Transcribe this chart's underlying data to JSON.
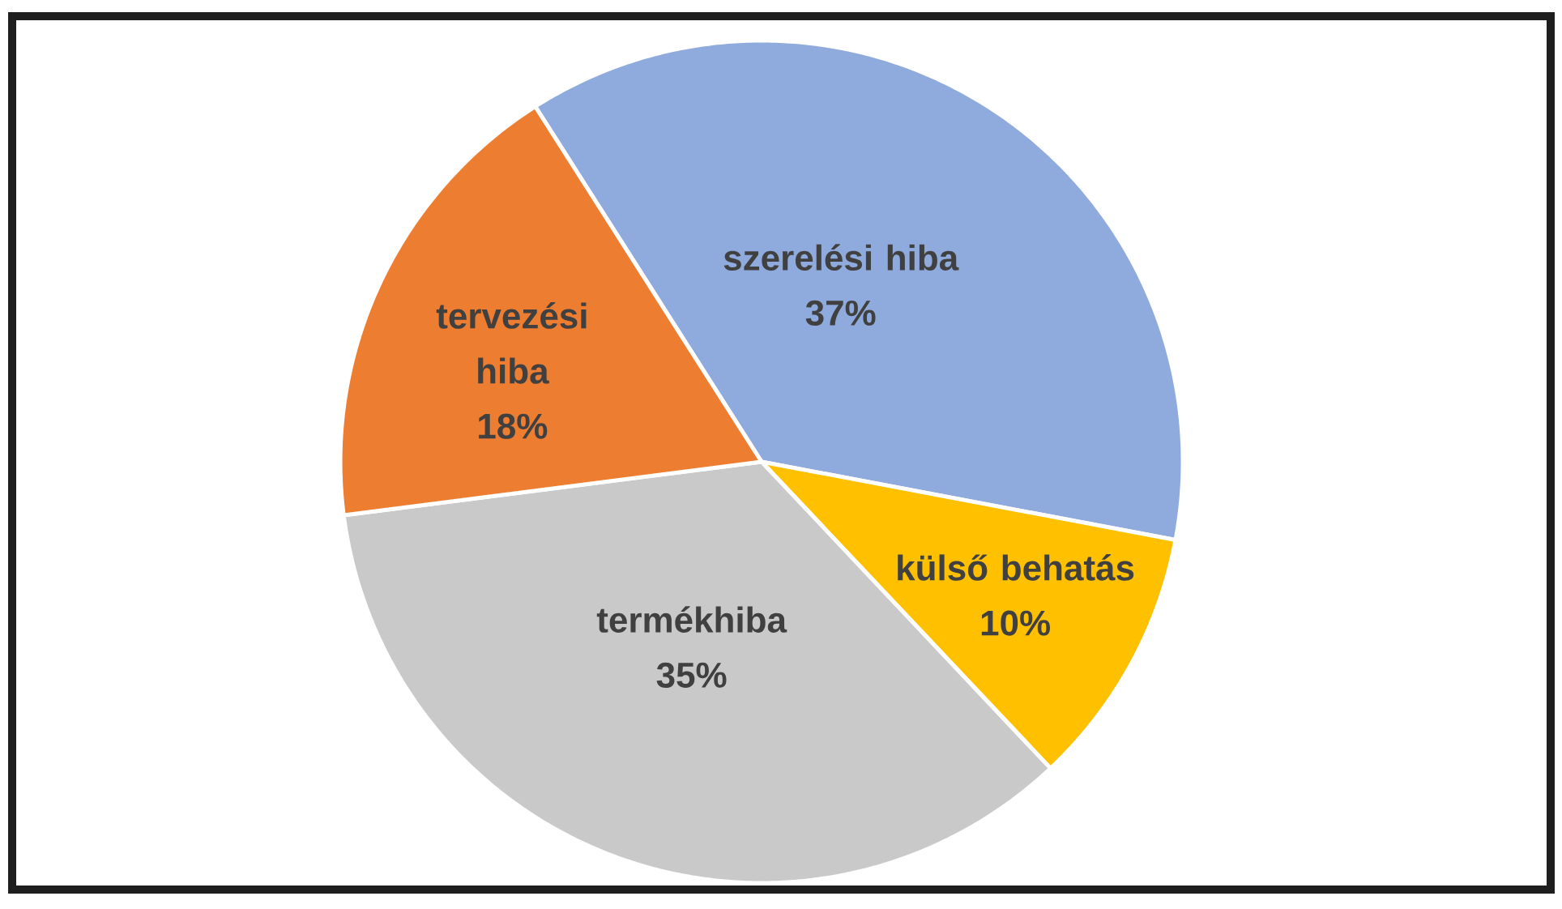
{
  "chart_data": {
    "type": "pie",
    "categories": [
      "szerelési hiba",
      "külső behatás",
      "termékhiba",
      "tervezési hiba"
    ],
    "values": [
      37,
      10,
      35,
      18
    ],
    "colors": [
      "#8faadc",
      "#ffc000",
      "#c9c9c9",
      "#ed7d31"
    ],
    "value_labels": [
      "37%",
      "10%",
      "35%",
      "18%"
    ]
  }
}
